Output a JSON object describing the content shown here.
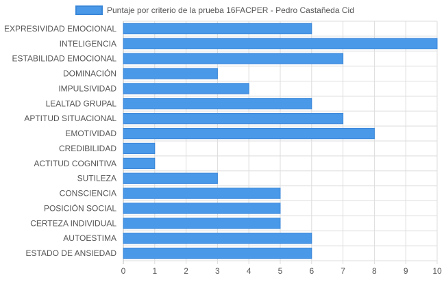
{
  "colors": {
    "bar_fill": "#4a98e8",
    "bar_stroke": "#3a86d8",
    "grid": "#dcdcdc",
    "axis_text": "#555555",
    "label_text": "#555555"
  },
  "chart_data": {
    "type": "bar",
    "orientation": "horizontal",
    "legend_position": "top",
    "grid": true,
    "xlim": [
      0,
      10
    ],
    "x_ticks": [
      "0",
      "1",
      "2",
      "3",
      "4",
      "5",
      "6",
      "7",
      "8",
      "9",
      "10"
    ],
    "categories": [
      "EXPRESIVIDAD EMOCIONAL",
      "INTELIGENCIA",
      "ESTABILIDAD EMOCIONAL",
      "DOMINACIÓN",
      "IMPULSIVIDAD",
      "LEALTAD GRUPAL",
      "APTITUD SITUACIONAL",
      "EMOTIVIDAD",
      "CREDIBILIDAD",
      "ACTITUD COGNITIVA",
      "SUTILEZA",
      "CONSCIENCIA",
      "POSICIÓN SOCIAL",
      "CERTEZA INDIVIDUAL",
      "AUTOESTIMA",
      "ESTADO DE ANSIEDAD"
    ],
    "series": [
      {
        "name": "Puntaje por criterio de la prueba 16FACPER - Pedro Castañeda Cid",
        "values": [
          6,
          10,
          7,
          3,
          4,
          6,
          7,
          8,
          1,
          1,
          3,
          5,
          5,
          5,
          6,
          6
        ]
      }
    ]
  }
}
